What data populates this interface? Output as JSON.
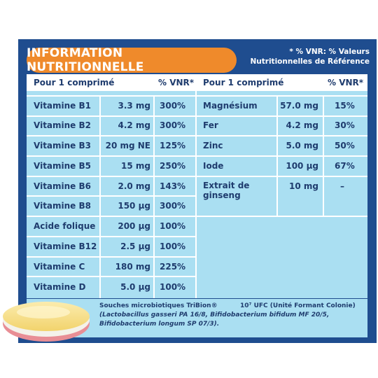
{
  "title": "INFORMATION NUTRITIONNELLE",
  "note_line1": "* % VNR: % Valeurs",
  "note_line2": "Nutritionnelles de Référence",
  "headers": {
    "left_label": "Pour 1 comprimé",
    "left_vnr": "% VNR*",
    "right_label": "Pour 1 comprimé",
    "right_vnr": "% VNR*"
  },
  "left_rows": [
    {
      "name": "Vitamine B1",
      "amount": "3.3 mg",
      "vnr": "300%"
    },
    {
      "name": "Vitamine B2",
      "amount": "4.2 mg",
      "vnr": "300%"
    },
    {
      "name": "Vitamine B3",
      "amount": "20 mg NE",
      "vnr": "125%"
    },
    {
      "name": "Vitamine B5",
      "amount": "15 mg",
      "vnr": "250%"
    },
    {
      "name": "Vitamine B6",
      "amount": "2.0 mg",
      "vnr": "143%"
    },
    {
      "name": "Vitamine B8",
      "amount": "150 µg",
      "vnr": "300%"
    },
    {
      "name": "Acide folique",
      "amount": "200 µg",
      "vnr": "100%"
    },
    {
      "name": "Vitamine B12",
      "amount": "2.5 µg",
      "vnr": "100%"
    },
    {
      "name": "Vitamine C",
      "amount": "180 mg",
      "vnr": "225%"
    },
    {
      "name": "Vitamine D",
      "amount": "5.0 µg",
      "vnr": "100%"
    }
  ],
  "right_rows": [
    {
      "name": "Magnésium",
      "amount": "57.0 mg",
      "vnr": "15%"
    },
    {
      "name": "Fer",
      "amount": "4.2 mg",
      "vnr": "30%"
    },
    {
      "name": "Zinc",
      "amount": "5.0 mg",
      "vnr": "50%"
    },
    {
      "name": "Iode",
      "amount": "100 µg",
      "vnr": "67%"
    },
    {
      "name_line1": "Extrait de",
      "name_line2": "ginseng",
      "amount": "10 mg",
      "vnr": "–"
    }
  ],
  "footer": {
    "line1_left": "Souches microbiotiques TriBion®",
    "line1_right": "10⁷ UFC (Unité Formant Colonie)",
    "line2": "(Lactobacillus gasseri PA 16/8, Bifidobacterium bifidum MF 20/5,",
    "line3": "Bifidobacterium longum SP 07/3)."
  },
  "colors": {
    "panel": "#1f4d8f",
    "badge": "#ef8a2b",
    "cell": "#aadff2",
    "text": "#1f3c6e"
  }
}
